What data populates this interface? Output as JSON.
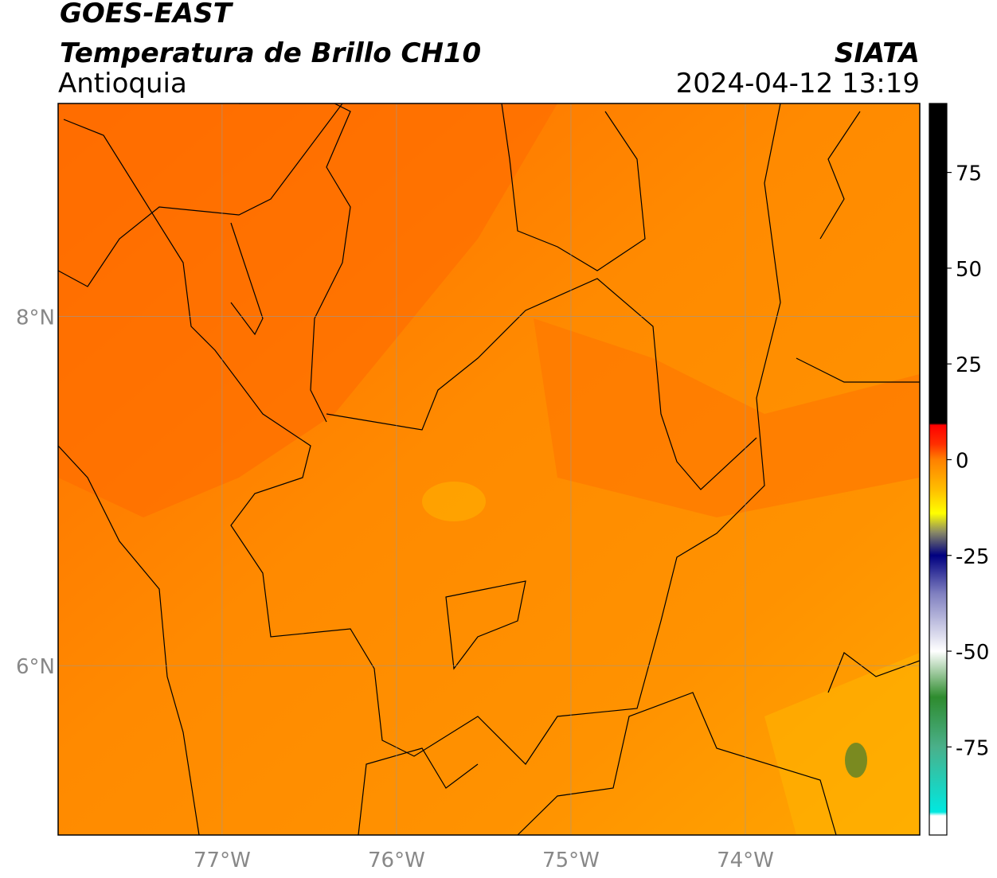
{
  "header": {
    "line1": "GOES-EAST",
    "line2": "Temperatura de Brillo CH10",
    "region": "Antioquia",
    "source": "SIATA",
    "datetime": "2024-04-12 13:19"
  },
  "map": {
    "lonlim": [
      -77.94,
      -73.0
    ],
    "latlim": [
      5.03,
      9.22
    ],
    "lonticks": [
      {
        "value": -77,
        "label": "77°W"
      },
      {
        "value": -76,
        "label": "76°W"
      },
      {
        "value": -75,
        "label": "75°W"
      },
      {
        "value": -74,
        "label": "74°W"
      }
    ],
    "latticks": [
      {
        "value": 8,
        "label": "8°N"
      },
      {
        "value": 6,
        "label": "6°N"
      }
    ],
    "grid": true
  },
  "colorbar": {
    "lim": [
      -98,
      93
    ],
    "ticks": [
      75,
      50,
      25,
      0,
      -25,
      -50,
      -75
    ],
    "stops": [
      {
        "value": 93,
        "color": "#000000"
      },
      {
        "value": 9.5,
        "color": "#000000"
      },
      {
        "value": 9,
        "color": "#ff0000"
      },
      {
        "value": 4,
        "color": "#ff3000"
      },
      {
        "value": 0,
        "color": "#ff8000"
      },
      {
        "value": -8,
        "color": "#ffc000"
      },
      {
        "value": -14,
        "color": "#ffff00"
      },
      {
        "value": -19,
        "color": "#888866"
      },
      {
        "value": -25,
        "color": "#000080"
      },
      {
        "value": -35,
        "color": "#8080c0"
      },
      {
        "value": -50,
        "color": "#ffffff"
      },
      {
        "value": -62,
        "color": "#2e8b2e"
      },
      {
        "value": -75,
        "color": "#4ab08a"
      },
      {
        "value": -92,
        "color": "#00e8e0"
      },
      {
        "value": -93,
        "color": "#ffffff"
      },
      {
        "value": -98,
        "color": "#ffffff"
      }
    ]
  }
}
